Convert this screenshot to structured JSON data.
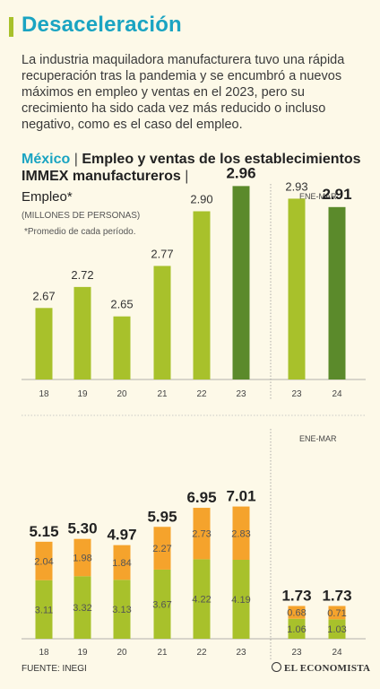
{
  "header": {
    "title": "Desaceleración",
    "intro": "La industria maquiladora manufacturera tuvo una rápida recuperación tras la pandemia y se encumbró a nuevos máximos en empleo y ventas en el 2023, pero su crecimiento ha sido cada vez más reducido o incluso negativo, como es el caso del empleo."
  },
  "chart_heading": {
    "country": "México",
    "separator": "|",
    "title": "Empleo y ventas de los establecimientos IMMEX manufactureros",
    "trailing_sep": "|"
  },
  "footer": {
    "source": "FUENTE: INEGI",
    "logo": "EL ECONOMISTA"
  },
  "colors": {
    "green": "#a8c12b",
    "dark_green": "#5b8a2b",
    "orange": "#f5a32c",
    "title_blue": "#1aa4c2"
  },
  "chart_data": [
    {
      "type": "bar",
      "title": "Empleo*",
      "units": "(MILLONES DE PERSONAS)",
      "note": "*Promedio de cada período.",
      "period_label": "ENE-MAR",
      "categories": [
        "18",
        "19",
        "20",
        "21",
        "22",
        "23",
        "23",
        "24"
      ],
      "values": [
        2.67,
        2.72,
        2.65,
        2.77,
        2.9,
        2.96,
        2.93,
        2.91
      ],
      "highlight": [
        false,
        false,
        false,
        false,
        false,
        true,
        false,
        true
      ],
      "ylim": [
        2.5,
        3.0
      ]
    },
    {
      "type": "bar",
      "stacked": true,
      "period_label": "ENE-MAR",
      "categories": [
        "18",
        "19",
        "20",
        "21",
        "22",
        "23",
        "23",
        "24"
      ],
      "series": [
        {
          "values": [
            3.11,
            3.32,
            3.13,
            3.67,
            4.22,
            4.19,
            1.06,
            1.03
          ]
        },
        {
          "values": [
            2.04,
            1.98,
            1.84,
            2.27,
            2.73,
            2.83,
            0.68,
            0.71
          ]
        }
      ],
      "totals": [
        "5.15",
        "5.30",
        "4.97",
        "5.95",
        "6.95",
        "7.01",
        "1.73",
        "1.73"
      ],
      "ylim": [
        0,
        8
      ]
    }
  ]
}
